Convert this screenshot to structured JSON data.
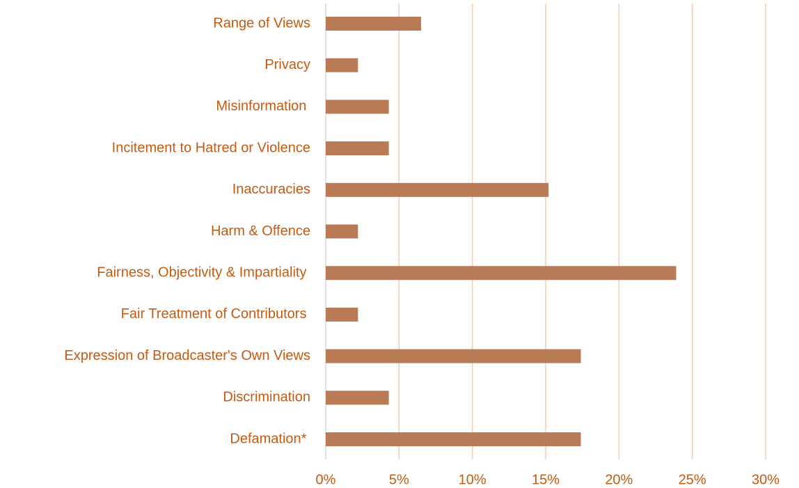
{
  "chart_data": {
    "type": "hbar",
    "categories": [
      "Range of Views",
      "Privacy",
      "Misinformation ",
      "Incitement to Hatred or Violence",
      "Inaccuracies",
      "Harm & Offence",
      "Fairness, Objectivity & Impartiality ",
      "Fair Treatment of Contributors ",
      "Expression of Broadcaster's Own Views",
      "Discrimination",
      "Defamation* "
    ],
    "values": [
      6.5,
      2.2,
      4.3,
      4.3,
      15.2,
      2.2,
      23.9,
      2.2,
      17.4,
      4.3,
      17.4
    ],
    "color": "#b97a56",
    "xlim": [
      0,
      30
    ],
    "xticks": [
      {
        "value": 0,
        "label": "0%"
      },
      {
        "value": 5,
        "label": "5%"
      },
      {
        "value": 10,
        "label": "10%"
      },
      {
        "value": 15,
        "label": "15%"
      },
      {
        "value": 20,
        "label": "20%"
      },
      {
        "value": 25,
        "label": "25%"
      },
      {
        "value": 30,
        "label": "30%"
      }
    ],
    "grid": true
  }
}
